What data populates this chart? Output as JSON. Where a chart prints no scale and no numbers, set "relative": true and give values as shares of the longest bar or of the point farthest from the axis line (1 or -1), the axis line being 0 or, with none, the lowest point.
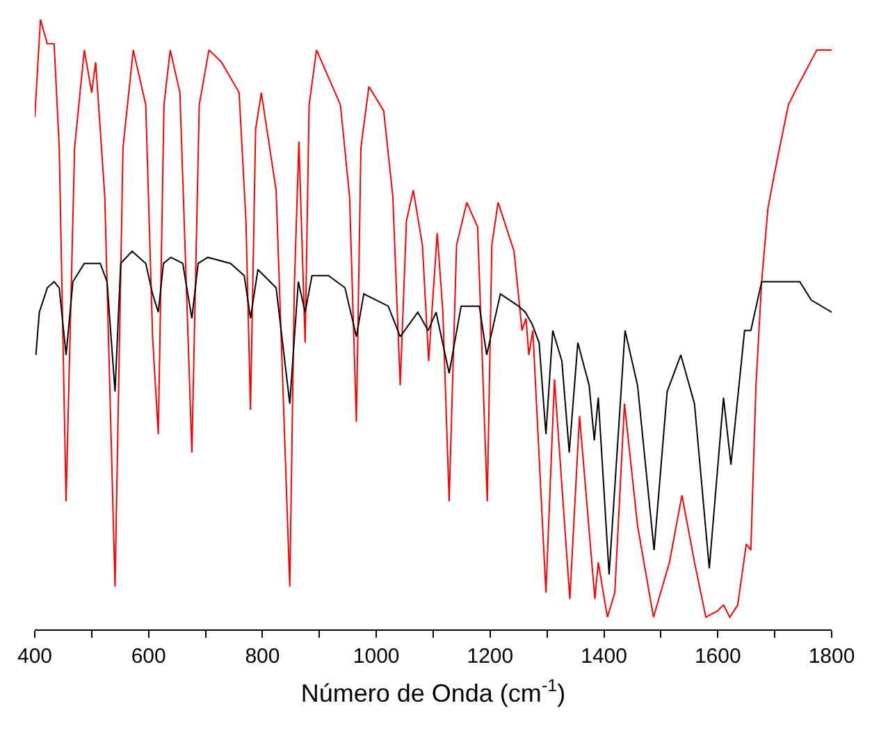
{
  "chart_data": {
    "type": "line",
    "relative": true,
    "xlabel": "Número de Onda (cm$^{-1}$)",
    "xlim": [
      400,
      1800
    ],
    "xticks": [
      400,
      {
        "value": 500,
        "label": null
      },
      600,
      {
        "value": 700,
        "label": null
      },
      800,
      {
        "value": 900,
        "label": null
      },
      1000,
      {
        "value": 1100,
        "label": null
      },
      1200,
      {
        "value": 1300,
        "label": null
      },
      1400,
      {
        "value": 1500,
        "label": null
      },
      1600,
      {
        "value": 1700,
        "label": null
      },
      1800
    ],
    "series": [
      {
        "color": "#ff0000",
        "x": [
          400,
          410,
          422,
          434,
          443,
          455,
          470,
          487,
          500,
          507,
          523,
          541,
          555,
          573,
          595,
          607,
          617,
          627,
          638,
          655,
          676,
          689,
          706,
          728,
          759,
          771,
          779,
          788,
          798,
          824,
          848,
          856,
          864,
          875,
          882,
          895,
          937,
          953,
          965,
          973,
          987,
          1013,
          1029,
          1042,
          1053,
          1065,
          1081,
          1092,
          1107,
          1117,
          1128,
          1141,
          1159,
          1178,
          1195,
          1203,
          1214,
          1242,
          1256,
          1263,
          1268,
          1275,
          1298,
          1313,
          1340,
          1357,
          1384,
          1390,
          1406,
          1419,
          1436,
          1459,
          1487,
          1515,
          1537,
          1559,
          1579,
          1599,
          1610,
          1621,
          1635,
          1650,
          1658,
          1667,
          1677,
          1688,
          1700,
          1724,
          1740,
          1774,
          1800
        ],
        "values": [
          0.84,
          1.0,
          0.96,
          0.96,
          0.79,
          0.21,
          0.79,
          0.95,
          0.88,
          0.93,
          0.71,
          0.07,
          0.79,
          0.95,
          0.86,
          0.48,
          0.32,
          0.86,
          0.95,
          0.88,
          0.29,
          0.86,
          0.95,
          0.93,
          0.88,
          0.67,
          0.36,
          0.82,
          0.88,
          0.72,
          0.07,
          0.56,
          0.8,
          0.47,
          0.86,
          0.95,
          0.86,
          0.71,
          0.34,
          0.79,
          0.89,
          0.85,
          0.71,
          0.4,
          0.67,
          0.72,
          0.63,
          0.44,
          0.65,
          0.52,
          0.21,
          0.63,
          0.7,
          0.66,
          0.21,
          0.63,
          0.7,
          0.62,
          0.49,
          0.51,
          0.45,
          0.49,
          0.06,
          0.41,
          0.05,
          0.35,
          0.05,
          0.11,
          0.02,
          0.06,
          0.37,
          0.17,
          0.02,
          0.11,
          0.22,
          0.11,
          0.02,
          0.03,
          0.04,
          0.02,
          0.04,
          0.14,
          0.13,
          0.4,
          0.57,
          0.69,
          0.75,
          0.86,
          0.89,
          0.95,
          0.95
        ]
      },
      {
        "color": "#000000",
        "x": [
          402,
          408,
          422,
          434,
          443,
          455,
          467,
          487,
          515,
          527,
          541,
          551,
          571,
          595,
          607,
          617,
          626,
          639,
          660,
          676,
          687,
          704,
          744,
          768,
          779,
          792,
          824,
          848,
          863,
          875,
          887,
          916,
          945,
          965,
          978,
          1021,
          1042,
          1073,
          1091,
          1105,
          1128,
          1149,
          1181,
          1194,
          1218,
          1250,
          1262,
          1274,
          1286,
          1298,
          1310,
          1326,
          1339,
          1354,
          1374,
          1383,
          1390,
          1409,
          1437,
          1459,
          1488,
          1511,
          1535,
          1559,
          1585,
          1610,
          1623,
          1647,
          1658,
          1677,
          1700,
          1712,
          1724,
          1744,
          1764,
          1800
        ],
        "values": [
          0.45,
          0.52,
          0.56,
          0.57,
          0.56,
          0.45,
          0.57,
          0.6,
          0.6,
          0.57,
          0.39,
          0.6,
          0.62,
          0.6,
          0.55,
          0.52,
          0.6,
          0.61,
          0.6,
          0.51,
          0.6,
          0.61,
          0.6,
          0.58,
          0.51,
          0.59,
          0.56,
          0.37,
          0.57,
          0.52,
          0.58,
          0.58,
          0.56,
          0.48,
          0.55,
          0.53,
          0.48,
          0.52,
          0.49,
          0.52,
          0.42,
          0.53,
          0.53,
          0.45,
          0.55,
          0.53,
          0.52,
          0.5,
          0.47,
          0.32,
          0.49,
          0.44,
          0.29,
          0.47,
          0.4,
          0.31,
          0.38,
          0.09,
          0.49,
          0.4,
          0.13,
          0.39,
          0.45,
          0.37,
          0.1,
          0.38,
          0.27,
          0.49,
          0.49,
          0.57,
          0.57,
          0.57,
          0.57,
          0.57,
          0.54,
          0.52
        ]
      }
    ]
  }
}
